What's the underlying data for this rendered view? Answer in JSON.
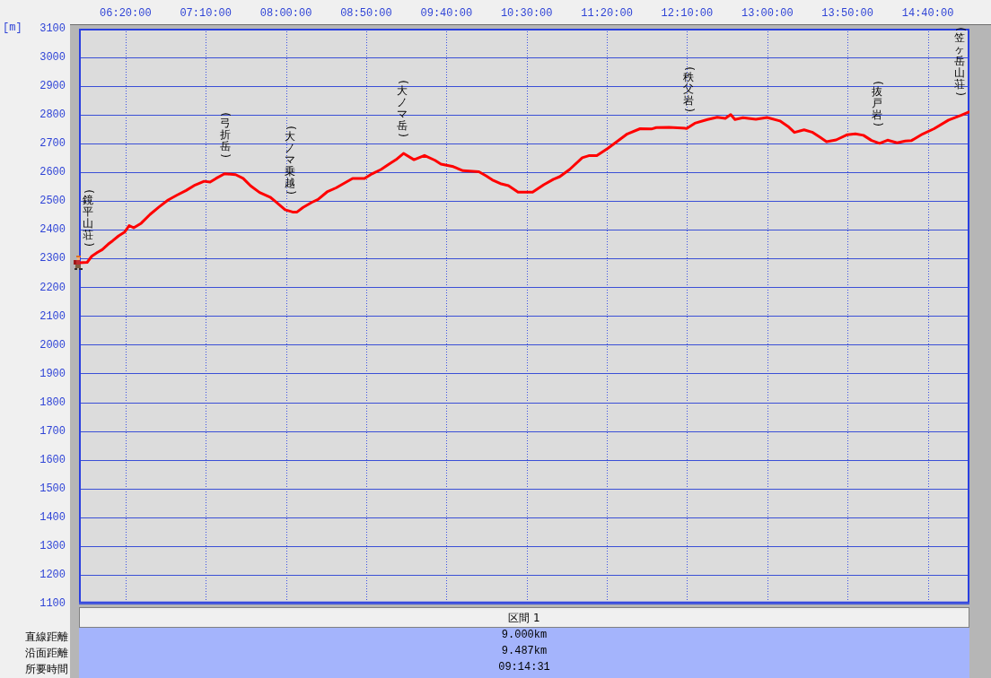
{
  "chart_data": {
    "type": "line",
    "ylabel": "[m]",
    "x": [
      5.85,
      5.935,
      5.982,
      6.044,
      6.091,
      6.153,
      6.2,
      6.262,
      6.324,
      6.371,
      6.418,
      6.496,
      6.589,
      6.683,
      6.776,
      6.869,
      6.963,
      7.056,
      7.15,
      7.212,
      7.274,
      7.362,
      7.477,
      7.555,
      7.633,
      7.726,
      7.835,
      7.882,
      7.991,
      8.069,
      8.115,
      8.178,
      8.271,
      8.333,
      8.427,
      8.52,
      8.614,
      8.692,
      8.816,
      8.894,
      8.987,
      9.081,
      9.143,
      9.221,
      9.33,
      9.439,
      9.548,
      9.61,
      9.738,
      9.838,
      10.004,
      10.078,
      10.143,
      10.227,
      10.311,
      10.411,
      10.562,
      10.678,
      10.779,
      10.844,
      10.946,
      11.078,
      11.146,
      11.229,
      11.346,
      11.446,
      11.546,
      11.679,
      11.796,
      11.847,
      11.98,
      12.163,
      12.247,
      12.38,
      12.48,
      12.564,
      12.62,
      12.664,
      12.747,
      12.881,
      12.998,
      13.131,
      13.215,
      13.282,
      13.382,
      13.465,
      13.548,
      13.615,
      13.715,
      13.832,
      13.915,
      13.999,
      14.083,
      14.166,
      14.249,
      14.349,
      14.433,
      14.499,
      14.616,
      14.733,
      14.883,
      15.017,
      15.094
    ],
    "series": [
      {
        "color": "#ff0000",
        "values": [
          2285,
          2287,
          2308,
          2322,
          2331,
          2350,
          2362,
          2379,
          2392,
          2415,
          2407,
          2423,
          2454,
          2480,
          2504,
          2521,
          2537,
          2556,
          2569,
          2566,
          2579,
          2595,
          2592,
          2579,
          2553,
          2530,
          2514,
          2501,
          2470,
          2462,
          2462,
          2478,
          2496,
          2506,
          2532,
          2546,
          2564,
          2579,
          2579,
          2595,
          2610,
          2631,
          2644,
          2666,
          2644,
          2659,
          2642,
          2629,
          2620,
          2606,
          2602,
          2588,
          2574,
          2561,
          2554,
          2531,
          2531,
          2557,
          2576,
          2585,
          2610,
          2651,
          2658,
          2658,
          2684,
          2709,
          2734,
          2752,
          2751,
          2756,
          2757,
          2753,
          2771,
          2784,
          2792,
          2788,
          2801,
          2784,
          2790,
          2785,
          2791,
          2779,
          2760,
          2739,
          2748,
          2740,
          2722,
          2707,
          2713,
          2731,
          2734,
          2729,
          2711,
          2701,
          2712,
          2703,
          2709,
          2711,
          2734,
          2752,
          2782,
          2799,
          2810
        ]
      }
    ],
    "xlim": [
      5.85,
      15.1
    ],
    "xticks": [
      {
        "value": 6.333333,
        "label": "06:20:00"
      },
      {
        "value": 7.166667,
        "label": "07:10:00"
      },
      {
        "value": 8,
        "label": "08:00:00"
      },
      {
        "value": 8.833333,
        "label": "08:50:00"
      },
      {
        "value": 9.666667,
        "label": "09:40:00"
      },
      {
        "value": 10.5,
        "label": "10:30:00"
      },
      {
        "value": 11.333333,
        "label": "11:20:00"
      },
      {
        "value": 12.166667,
        "label": "12:10:00"
      },
      {
        "value": 13,
        "label": "13:00:00"
      },
      {
        "value": 13.833333,
        "label": "13:50:00"
      },
      {
        "value": 14.666667,
        "label": "14:40:00"
      }
    ],
    "ylim": [
      1100,
      3100
    ],
    "yticks": [
      1100,
      1200,
      1300,
      1400,
      1500,
      1600,
      1700,
      1800,
      1900,
      2000,
      2100,
      2200,
      2300,
      2400,
      2500,
      2600,
      2700,
      2800,
      2900,
      3000,
      3100
    ],
    "grid": true,
    "annotations": [
      {
        "text": "(鏡平山荘)",
        "x": 5.85,
        "y": 2285
      },
      {
        "text": "(弓折岳)",
        "x": 7.368,
        "y": 2595
      },
      {
        "text": "(大ノマ乗越)",
        "x": 8.041,
        "y": 2465
      },
      {
        "text": "(大ノマ岳)",
        "x": 9.209,
        "y": 2665
      },
      {
        "text": "(秩父岩)",
        "x": 12.18,
        "y": 2755
      },
      {
        "text": "(抜戸岩)",
        "x": 14.142,
        "y": 2705
      },
      {
        "text": "(笠ヶ岳山荘)",
        "x": 15.094,
        "y": 2810
      },
      "区間 1",
      "直線距離",
      "9.000km",
      "沿面距離",
      "9.487km",
      "所要時間",
      "09:14:31"
    ]
  }
}
